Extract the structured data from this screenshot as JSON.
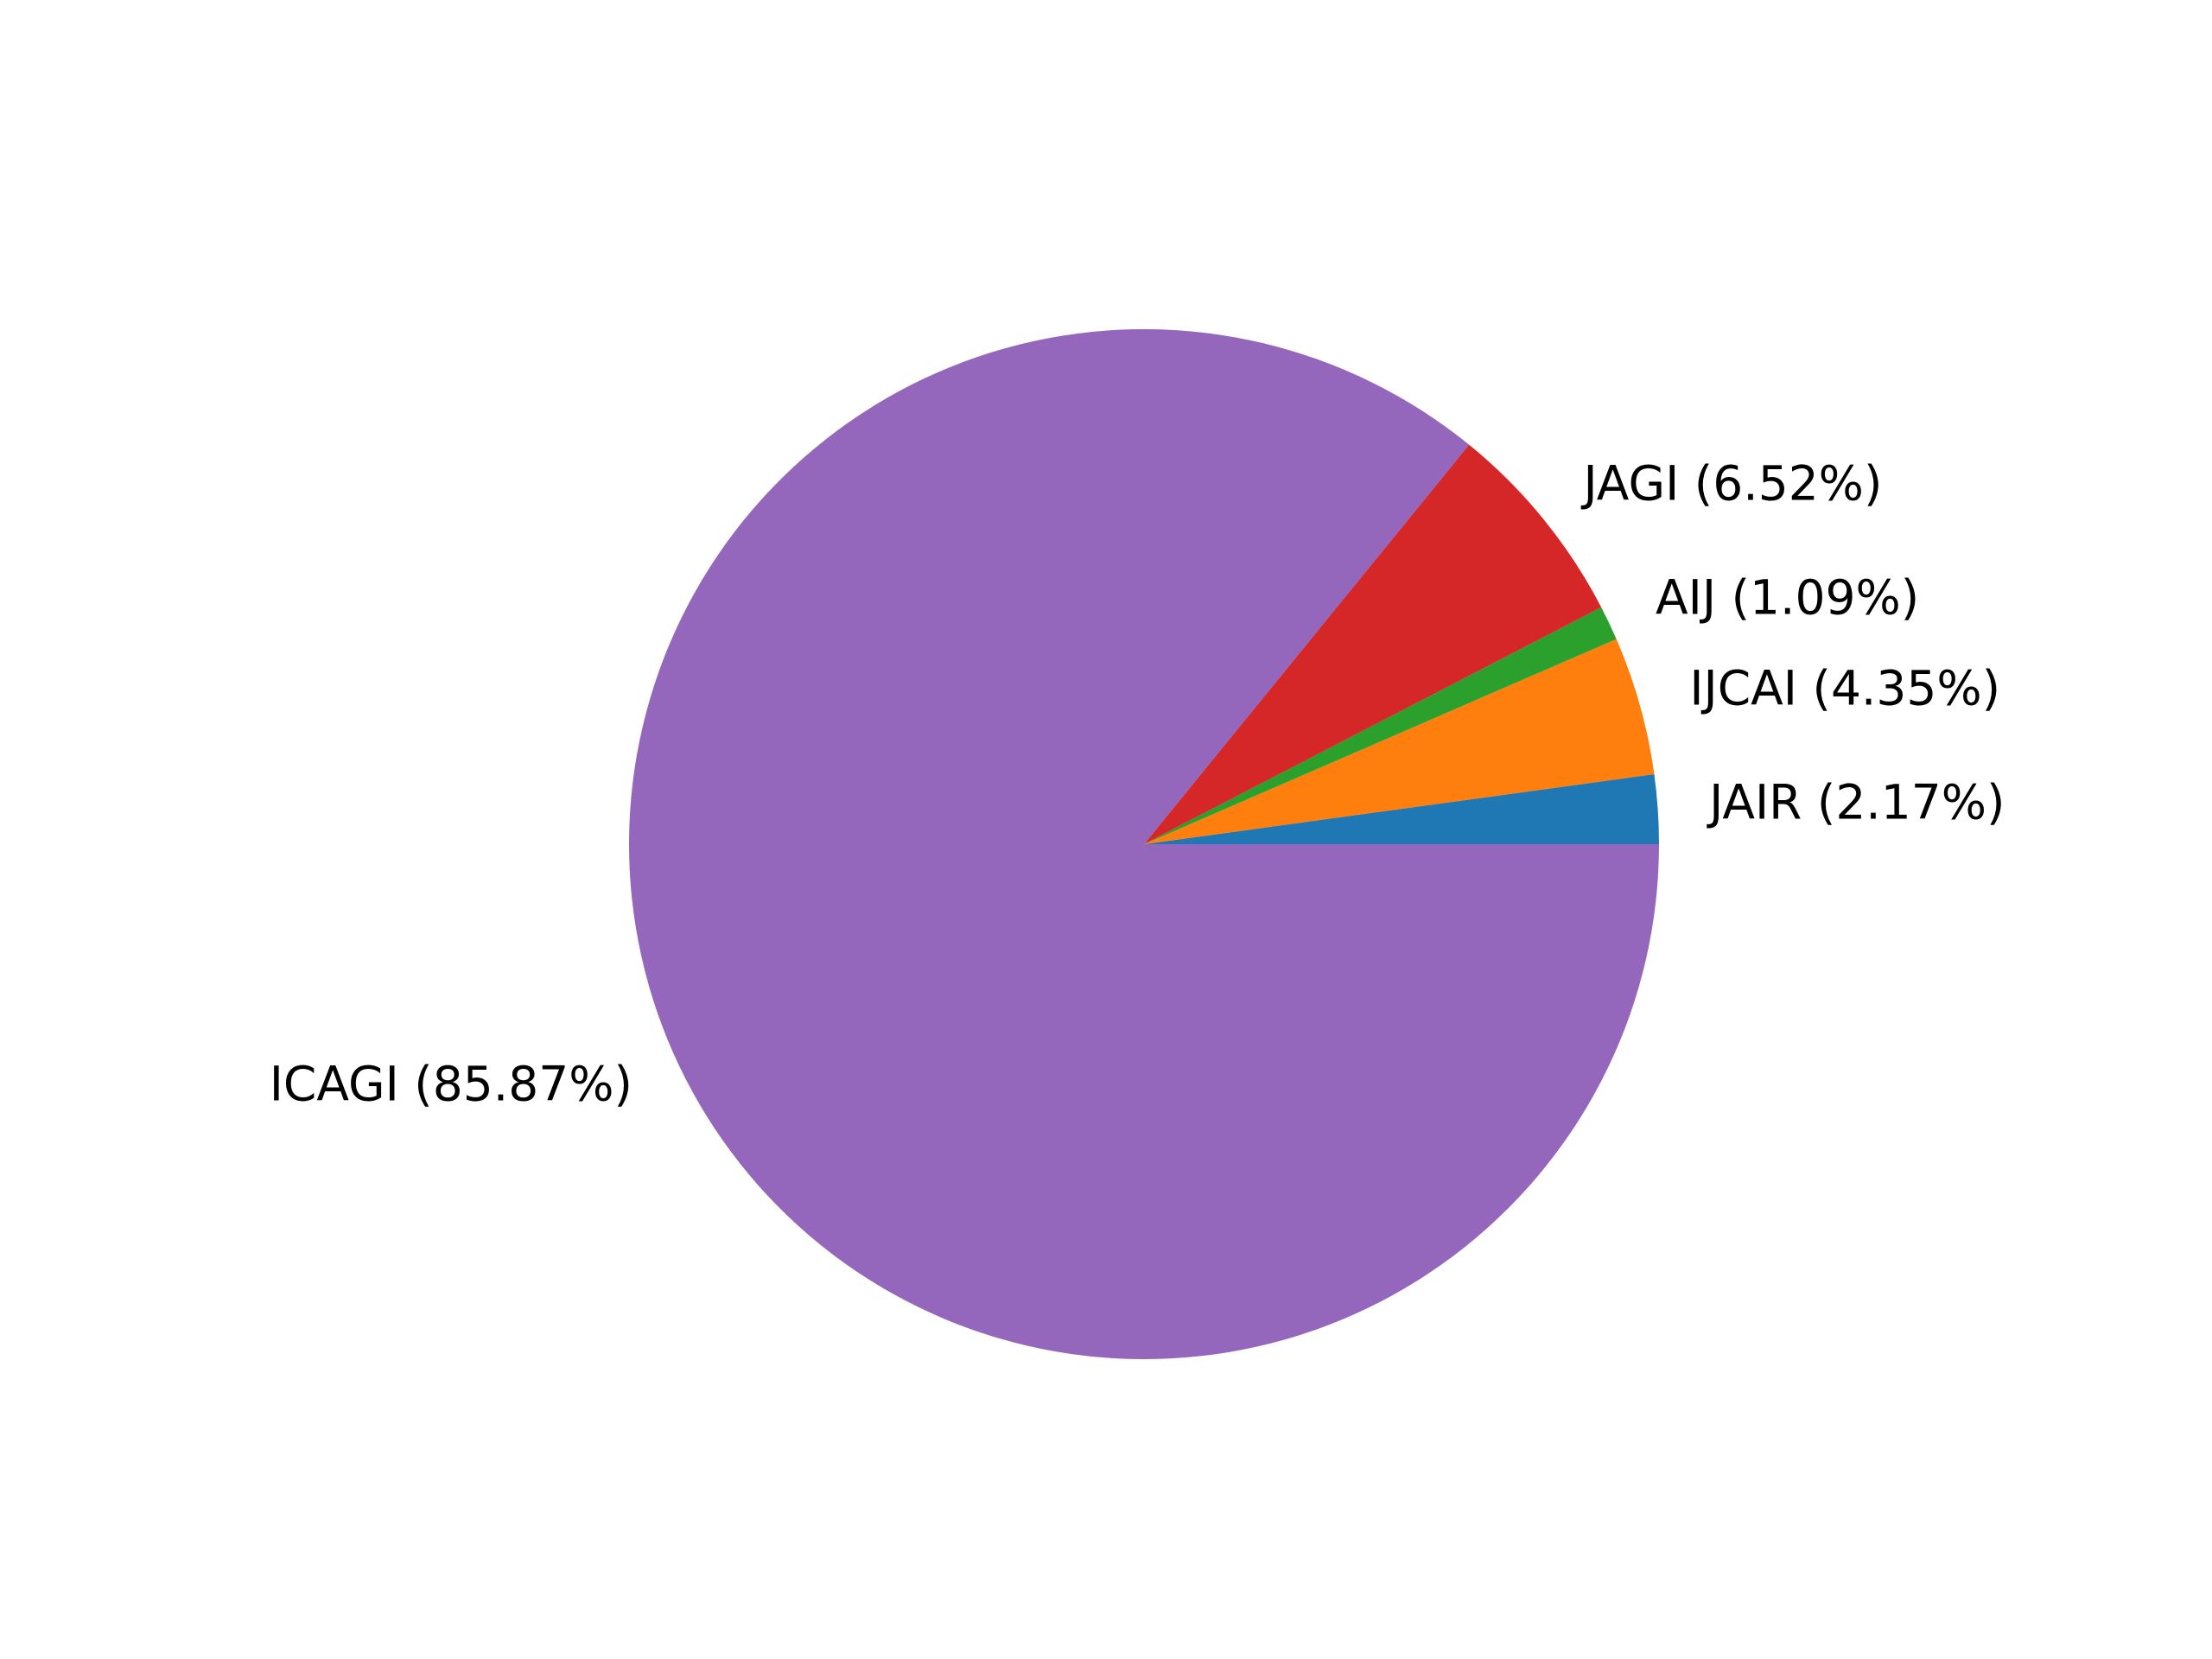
{
  "chart_data": {
    "type": "pie",
    "title": "",
    "start_angle_deg": 0,
    "direction": "counterclockwise",
    "slices": [
      {
        "label": "JAIR (2.17%)",
        "name": "JAIR",
        "value": 2.17,
        "color": "#1f77b4"
      },
      {
        "label": "IJCAI (4.35%)",
        "name": "IJCAI",
        "value": 4.35,
        "color": "#ff7f0e"
      },
      {
        "label": "AIJ (1.09%)",
        "name": "AIJ",
        "value": 1.09,
        "color": "#2ca02c"
      },
      {
        "label": "JAGI (6.52%)",
        "name": "JAGI",
        "value": 6.52,
        "color": "#d62728"
      },
      {
        "label": "ICAGI (85.87%)",
        "name": "ICAGI",
        "value": 85.87,
        "color": "#9467bd"
      }
    ]
  }
}
